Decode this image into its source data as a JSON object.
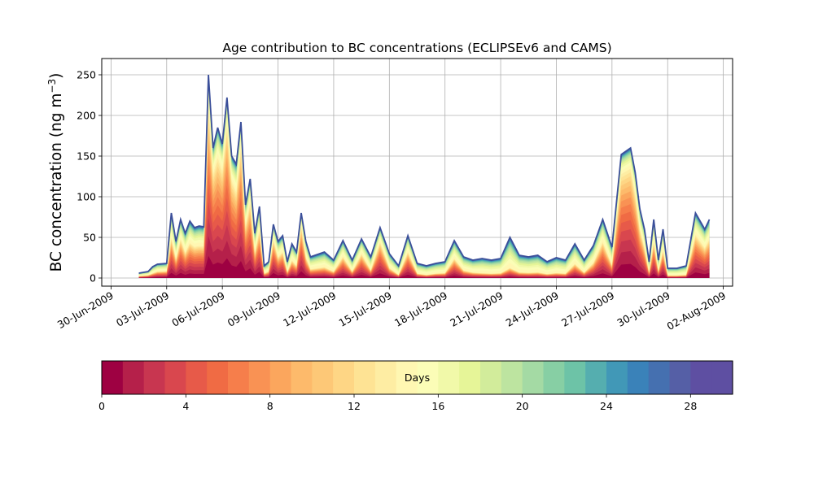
{
  "chart_data": {
    "type": "area",
    "title": "Age contribution to BC concentrations (ECLIPSEv6 and CAMS)",
    "ylabel": "BC concentration (ng m",
    "ylabel_sup": "−3",
    "ylabel_close": ")",
    "xlabel": "",
    "ylim": [
      -10,
      270
    ],
    "xlim": [
      "2009-06-29T12:00",
      "2009-08-02T12:00"
    ],
    "grid": true,
    "stacked": true,
    "x_ticks": [
      "30-Jun-2009",
      "03-Jul-2009",
      "06-Jul-2009",
      "09-Jul-2009",
      "12-Jul-2009",
      "15-Jul-2009",
      "18-Jul-2009",
      "21-Jul-2009",
      "24-Jul-2009",
      "27-Jul-2009",
      "30-Jul-2009",
      "02-Aug-2009"
    ],
    "y_ticks": [
      "0",
      "50",
      "100",
      "150",
      "200",
      "250"
    ],
    "x": [
      "2009-07-01T12:00",
      "2009-07-02T00:00",
      "2009-07-02T06:00",
      "2009-07-02T12:00",
      "2009-07-03T00:00",
      "2009-07-03T06:00",
      "2009-07-03T12:00",
      "2009-07-03T18:00",
      "2009-07-04T00:00",
      "2009-07-04T06:00",
      "2009-07-04T12:00",
      "2009-07-04T18:00",
      "2009-07-05T00:00",
      "2009-07-05T06:00",
      "2009-07-05T12:00",
      "2009-07-05T18:00",
      "2009-07-06T00:00",
      "2009-07-06T06:00",
      "2009-07-06T12:00",
      "2009-07-06T18:00",
      "2009-07-07T00:00",
      "2009-07-07T06:00",
      "2009-07-07T12:00",
      "2009-07-07T18:00",
      "2009-07-08T00:00",
      "2009-07-08T06:00",
      "2009-07-08T12:00",
      "2009-07-08T18:00",
      "2009-07-09T00:00",
      "2009-07-09T06:00",
      "2009-07-09T12:00",
      "2009-07-09T18:00",
      "2009-07-10T00:00",
      "2009-07-10T06:00",
      "2009-07-10T12:00",
      "2009-07-10T18:00",
      "2009-07-11T00:00",
      "2009-07-11T12:00",
      "2009-07-12T00:00",
      "2009-07-12T12:00",
      "2009-07-13T00:00",
      "2009-07-13T12:00",
      "2009-07-14T00:00",
      "2009-07-14T12:00",
      "2009-07-15T00:00",
      "2009-07-15T12:00",
      "2009-07-16T00:00",
      "2009-07-16T12:00",
      "2009-07-17T00:00",
      "2009-07-17T12:00",
      "2009-07-18T00:00",
      "2009-07-18T12:00",
      "2009-07-19T00:00",
      "2009-07-19T12:00",
      "2009-07-20T00:00",
      "2009-07-20T12:00",
      "2009-07-21T00:00",
      "2009-07-21T12:00",
      "2009-07-22T00:00",
      "2009-07-22T12:00",
      "2009-07-23T00:00",
      "2009-07-23T12:00",
      "2009-07-24T00:00",
      "2009-07-24T12:00",
      "2009-07-25T00:00",
      "2009-07-25T12:00",
      "2009-07-26T00:00",
      "2009-07-26T12:00",
      "2009-07-27T00:00",
      "2009-07-27T12:00",
      "2009-07-28T00:00",
      "2009-07-28T06:00",
      "2009-07-28T12:00",
      "2009-07-28T18:00",
      "2009-07-29T00:00",
      "2009-07-29T06:00",
      "2009-07-29T12:00",
      "2009-07-29T18:00",
      "2009-07-30T00:00",
      "2009-07-30T12:00",
      "2009-07-31T00:00",
      "2009-07-31T12:00",
      "2009-08-01T00:00",
      "2009-08-01T06:00"
    ],
    "total": [
      6,
      8,
      14,
      17,
      18,
      80,
      45,
      72,
      55,
      70,
      62,
      64,
      63,
      250,
      160,
      185,
      165,
      222,
      150,
      140,
      192,
      90,
      122,
      55,
      88,
      15,
      20,
      66,
      45,
      52,
      20,
      42,
      32,
      80,
      45,
      26,
      28,
      32,
      22,
      46,
      22,
      48,
      26,
      62,
      30,
      15,
      52,
      18,
      15,
      18,
      20,
      46,
      26,
      22,
      24,
      22,
      24,
      50,
      28,
      26,
      28,
      20,
      25,
      22,
      42,
      22,
      40,
      72,
      38,
      152,
      160,
      130,
      85,
      60,
      20,
      72,
      22,
      60,
      12,
      12,
      15,
      80,
      60,
      72
    ],
    "fresh_fraction": [
      0.3,
      0.35,
      0.35,
      0.4,
      0.4,
      0.55,
      0.45,
      0.6,
      0.5,
      0.55,
      0.55,
      0.55,
      0.55,
      0.8,
      0.75,
      0.75,
      0.75,
      0.8,
      0.75,
      0.7,
      0.8,
      0.65,
      0.7,
      0.5,
      0.6,
      0.3,
      0.35,
      0.65,
      0.5,
      0.55,
      0.3,
      0.45,
      0.4,
      0.75,
      0.5,
      0.35,
      0.35,
      0.35,
      0.3,
      0.5,
      0.3,
      0.55,
      0.3,
      0.65,
      0.35,
      0.2,
      0.55,
      0.25,
      0.2,
      0.25,
      0.25,
      0.45,
      0.3,
      0.25,
      0.2,
      0.2,
      0.2,
      0.2,
      0.2,
      0.2,
      0.2,
      0.2,
      0.2,
      0.2,
      0.35,
      0.25,
      0.4,
      0.55,
      0.35,
      0.8,
      0.8,
      0.75,
      0.65,
      0.55,
      0.25,
      0.55,
      0.3,
      0.5,
      0.2,
      0.2,
      0.2,
      0.6,
      0.55,
      0.6
    ],
    "colorbar": {
      "label": "Days",
      "range": [
        0,
        30
      ],
      "ticks": [
        "0",
        "4",
        "8",
        "12",
        "16",
        "20",
        "24",
        "28"
      ],
      "bins": 30,
      "colormap": "Spectral",
      "colors": [
        "#9e0142",
        "#b5204a",
        "#c83650",
        "#d9474e",
        "#e75a49",
        "#f06b44",
        "#f67e4b",
        "#f99254",
        "#fba65d",
        "#fdba6b",
        "#fdc877",
        "#fed685",
        "#fee394",
        "#feeda3",
        "#fff7b2",
        "#fbfdb7",
        "#f1f9a9",
        "#e6f598",
        "#d2ec9b",
        "#bde4a0",
        "#a4daa4",
        "#87cfa4",
        "#6dc3a7",
        "#55aeaf",
        "#4198b7",
        "#3a82b9",
        "#4570b0",
        "#555fa6",
        "#5e4fa2",
        "#5e4fa2"
      ]
    }
  }
}
